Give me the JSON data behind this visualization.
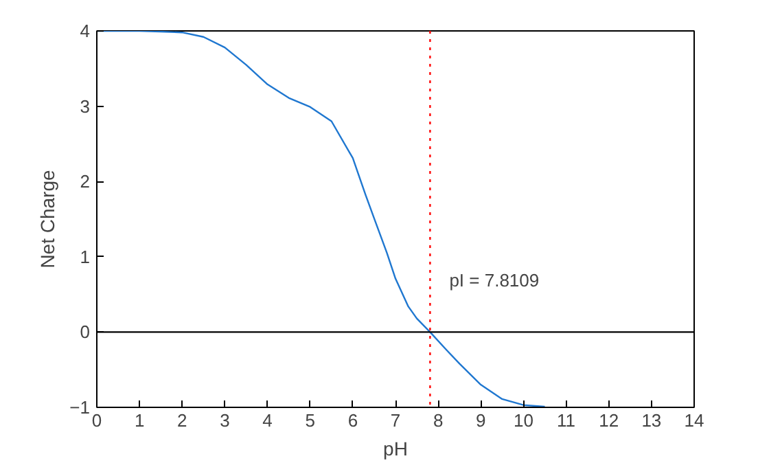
{
  "chart_data": {
    "type": "line",
    "xlabel": "pH",
    "ylabel": "Net Charge",
    "xlim": [
      0,
      14
    ],
    "ylim": [
      -1,
      4
    ],
    "xticks": [
      0,
      1,
      2,
      3,
      4,
      5,
      6,
      7,
      8,
      9,
      10,
      11,
      12,
      13,
      14
    ],
    "yticks": [
      -1,
      0,
      1,
      2,
      3,
      4
    ],
    "grid": false,
    "series": [
      {
        "color": "#1f77d0",
        "x": [
          0,
          1,
          1.5,
          2,
          2.5,
          3,
          3.5,
          4,
          4.5,
          5,
          5.5,
          6,
          6.3,
          6.5,
          6.8,
          7,
          7.3,
          7.5,
          7.81,
          8.2,
          8.5,
          9,
          9.5,
          10,
          10.5
        ],
        "values": [
          4,
          4,
          3.99,
          3.98,
          3.92,
          3.78,
          3.55,
          3.29,
          3.11,
          2.99,
          2.8,
          2.31,
          1.82,
          1.51,
          1.05,
          0.71,
          0.34,
          0.18,
          0,
          -0.24,
          -0.42,
          -0.7,
          -0.89,
          -0.97,
          -0.99
        ]
      }
    ],
    "ref_lines": [
      {
        "axis": "y",
        "value": 0,
        "label": null,
        "color": "#000000",
        "line_style": "solid"
      },
      {
        "axis": "x",
        "value": 7.8109,
        "label": "pI = 7.8109",
        "color": "#ff0000",
        "line_style": "dotted"
      }
    ]
  }
}
